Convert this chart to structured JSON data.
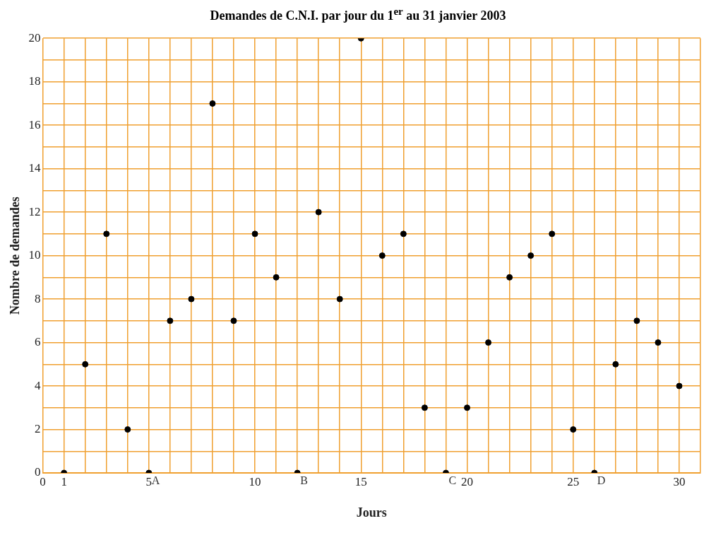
{
  "chart_data": {
    "type": "scatter",
    "title": "Demandes de C.N.I. par jour du 1$^{er}$ au 31 janvier 2003",
    "xlabel": "Jours",
    "ylabel": "Nombre de demandes",
    "x": [
      1,
      2,
      3,
      4,
      5,
      6,
      7,
      8,
      9,
      10,
      11,
      12,
      13,
      14,
      15,
      16,
      17,
      18,
      19,
      20,
      21,
      22,
      23,
      24,
      25,
      26,
      27,
      28,
      29,
      30
    ],
    "series": [
      {
        "color": "#000000",
        "values": [
          0,
          5,
          11,
          2,
          0,
          7,
          8,
          17,
          7,
          11,
          9,
          0,
          12,
          8,
          20,
          10,
          11,
          3,
          0,
          3,
          6,
          9,
          10,
          11,
          2,
          0,
          5,
          7,
          6,
          4
        ]
      }
    ],
    "xlim": [
      0,
      31
    ],
    "xticks": [
      0,
      1,
      {
        "value": 2,
        "label": null
      },
      {
        "value": 3,
        "label": null
      },
      {
        "value": 4,
        "label": null
      },
      5,
      {
        "value": 6,
        "label": null
      },
      {
        "value": 7,
        "label": null
      },
      {
        "value": 8,
        "label": null
      },
      {
        "value": 9,
        "label": null
      },
      10,
      {
        "value": 11,
        "label": null
      },
      {
        "value": 12,
        "label": null
      },
      {
        "value": 13,
        "label": null
      },
      {
        "value": 14,
        "label": null
      },
      15,
      {
        "value": 16,
        "label": null
      },
      {
        "value": 17,
        "label": null
      },
      {
        "value": 18,
        "label": null
      },
      {
        "value": 19,
        "label": null
      },
      20,
      {
        "value": 21,
        "label": null
      },
      {
        "value": 22,
        "label": null
      },
      {
        "value": 23,
        "label": null
      },
      {
        "value": 24,
        "label": null
      },
      25,
      {
        "value": 26,
        "label": null
      },
      {
        "value": 27,
        "label": null
      },
      {
        "value": 28,
        "label": null
      },
      {
        "value": 29,
        "label": null
      },
      30,
      {
        "value": 31,
        "label": null
      }
    ],
    "ylim": [
      0,
      20
    ],
    "yticks": [
      0,
      {
        "value": 1,
        "label": null
      },
      2,
      {
        "value": 3,
        "label": null
      },
      4,
      {
        "value": 5,
        "label": null
      },
      6,
      {
        "value": 7,
        "label": null
      },
      8,
      {
        "value": 9,
        "label": null
      },
      10,
      {
        "value": 11,
        "label": null
      },
      12,
      {
        "value": 13,
        "label": null
      },
      14,
      {
        "value": 15,
        "label": null
      },
      16,
      {
        "value": 17,
        "label": null
      },
      18,
      {
        "value": 19,
        "label": null
      },
      20
    ],
    "annotations": [
      {
        "text": "A",
        "x": 5,
        "y": 0
      },
      {
        "text": "B",
        "x": 12,
        "y": 0
      },
      {
        "text": "C",
        "x": 19,
        "y": 0
      },
      {
        "text": "D",
        "x": 26,
        "y": 0
      }
    ],
    "grid": true,
    "marker": "circle",
    "legend": false
  }
}
